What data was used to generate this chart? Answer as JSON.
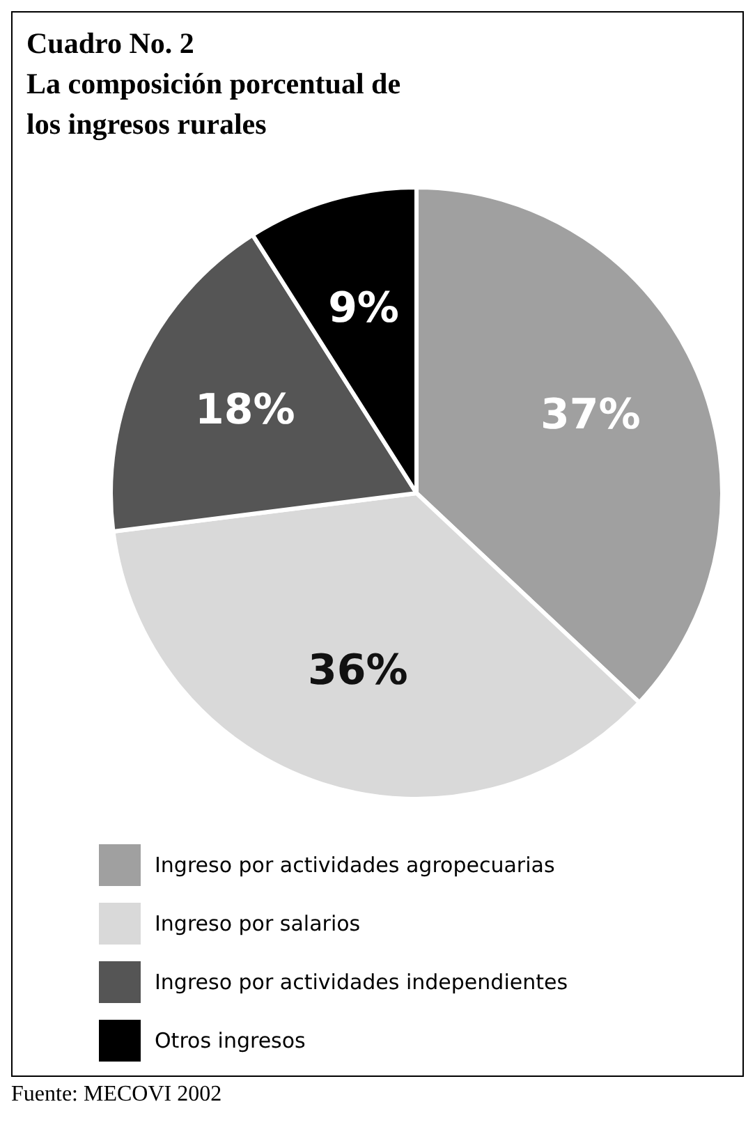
{
  "chart_data": {
    "type": "pie",
    "title": "Cuadro No. 2\nLa composición porcentual de\nlos ingresos rurales",
    "categories": [
      "Ingreso por actividades agropecuarias",
      "Ingreso por salarios",
      "Ingreso por actividades independientes",
      "Otros ingresos"
    ],
    "values": [
      37,
      36,
      18,
      9
    ],
    "colors": [
      "#a0a0a0",
      "#d9d9d9",
      "#555555",
      "#000000"
    ],
    "value_labels": [
      "37%",
      "36%",
      "18%",
      "9%"
    ],
    "legend": "bottom",
    "annotations": [
      "Fuente: MECOVI 2002"
    ]
  }
}
